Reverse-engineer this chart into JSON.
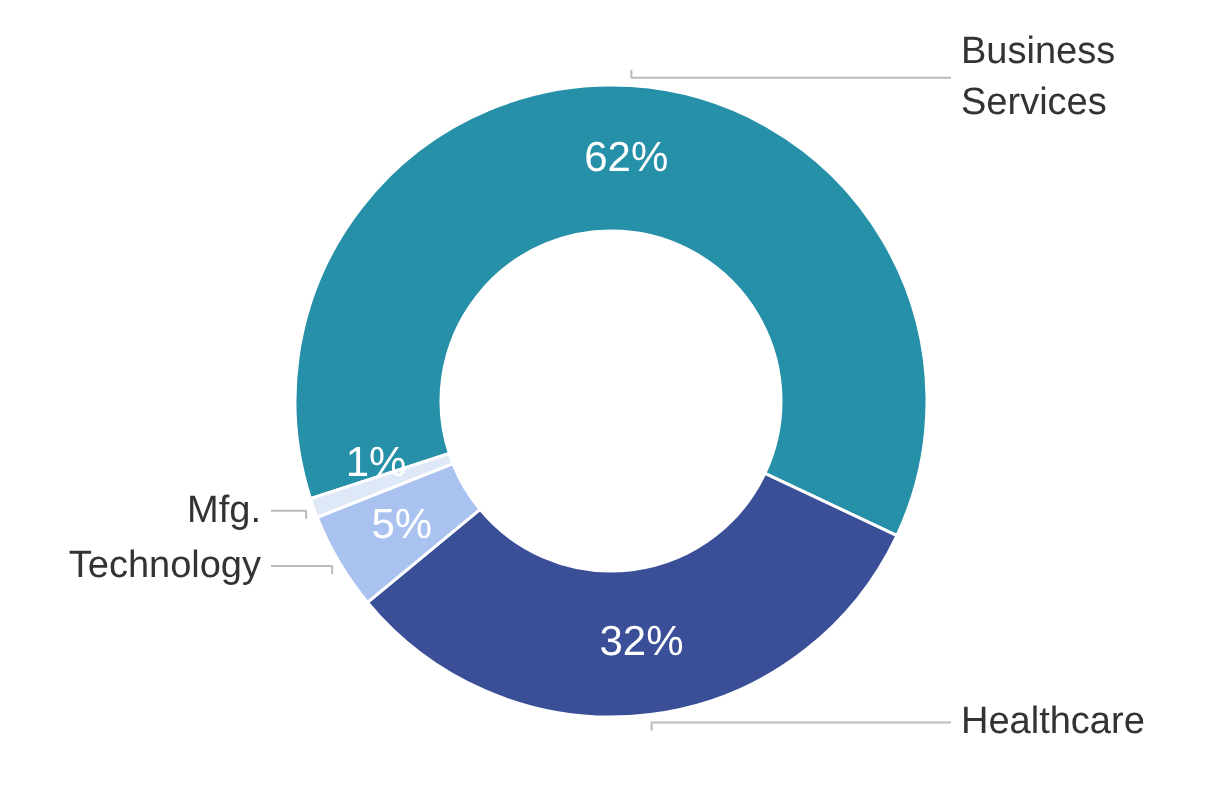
{
  "chart_data": {
    "type": "donut",
    "categories": [
      "Business\nServices",
      "Healthcare",
      "Technology",
      "Mfg."
    ],
    "values": [
      62,
      32,
      5,
      1
    ],
    "colors": [
      "#2590a8",
      "#3a4f98",
      "#a9c2f0",
      "#dfe8f6"
    ],
    "value_labels": [
      "62%",
      "32%",
      "5%",
      "1%"
    ]
  }
}
